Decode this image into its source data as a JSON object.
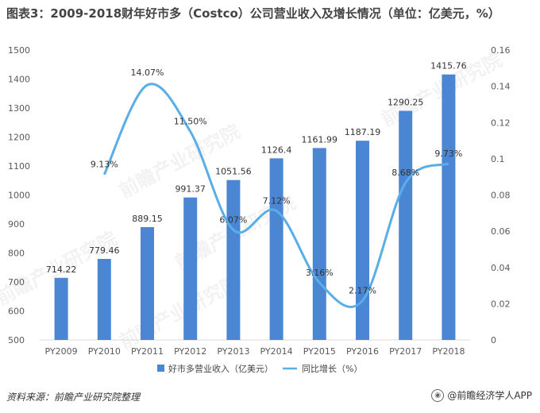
{
  "title": "图表3：2009-2018财年好市多（Costco）公司营业收入及增长情况（单位：亿美元，%）",
  "source": "资料来源：前瞻产业研究院整理",
  "credit": "@前瞻经济学人APP",
  "watermark": "前瞻产业研究院",
  "colors": {
    "bar": "#4a86d4",
    "line": "#5aaee8",
    "grid": "#e4e4e4",
    "axis_text": "#595959"
  },
  "chart_data": {
    "type": "bar+line",
    "categories": [
      "PY2009",
      "PY2010",
      "PY2011",
      "PY2012",
      "PY2013",
      "PY2014",
      "PY2015",
      "PY2016",
      "PY2017",
      "PY2018"
    ],
    "series": [
      {
        "name": "好市多营业收入（亿美元）",
        "type": "bar",
        "axis": "left",
        "values": [
          714.22,
          779.46,
          889.15,
          991.37,
          1051.56,
          1126.4,
          1161.99,
          1187.19,
          1290.25,
          1415.76
        ],
        "labels": [
          "714.22",
          "779.46",
          "889.15",
          "991.37",
          "1051.56",
          "1126.4",
          "1161.99",
          "1187.19",
          "1290.25",
          "1415.76"
        ]
      },
      {
        "name": "同比增长（%）",
        "type": "line",
        "axis": "right",
        "values": [
          null,
          0.0913,
          0.1407,
          0.115,
          0.0607,
          0.0712,
          0.0316,
          0.0217,
          0.0868,
          0.0973
        ],
        "labels": [
          "",
          "9.13%",
          "14.07%",
          "11.50%",
          "6.07%",
          "7.12%",
          "3.16%",
          "2.17%",
          "8.68%",
          "9.73%"
        ]
      }
    ],
    "y_left": {
      "lim": [
        500,
        1500
      ],
      "ticks": [
        "500",
        "600",
        "700",
        "800",
        "900",
        "1000",
        "1100",
        "1200",
        "1300",
        "1400",
        "1500"
      ]
    },
    "y_right": {
      "lim": [
        0,
        0.16
      ],
      "ticks": [
        "0",
        "0.02",
        "0.04",
        "0.06",
        "0.08",
        "0.1",
        "0.12",
        "0.14",
        "0.16"
      ]
    },
    "grid": false,
    "legend": "bottom-center"
  }
}
